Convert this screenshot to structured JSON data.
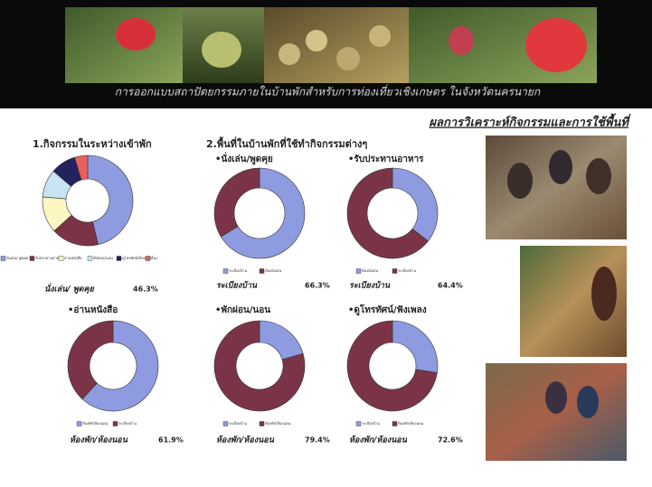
{
  "header": {
    "title": "การออกแบบสถาปัตยกรรมภายในบ้านพักสำหรับการท่องเที่ยวเชิงเกษตร ในจังหวัดนครนายก"
  },
  "heading": "ผลการวิเคราะห์กิจกรรมและการใช้พื้นที่",
  "section_title": "2.พื้นที่ในบ้านพักที่ใช้ทำกิจกรรมต่างๆ",
  "chart_data": [
    {
      "type": "donut",
      "title": "1.กิจกรรมในระหว่างเข้าพัก",
      "categories": [
        "นั่งเล่น/ พูดคุย",
        "รับประทานอาหาร",
        "อ่านหนังสือ",
        "พักผ่อน/นอน",
        "ดูโทรทัศน์/ฟังเพลง",
        "อื่นๆ"
      ],
      "values": [
        46.3,
        17,
        13,
        10,
        9,
        4.7
      ],
      "value_labels": [
        "46.3%",
        null,
        null,
        null,
        null,
        null
      ],
      "colors": [
        "#8e9be0",
        "#7b3447",
        "#fbf6c2",
        "#c7e4f4",
        "#23215e",
        "#e8605c"
      ]
    },
    {
      "type": "donut",
      "title": "•นั่งเล่น/พูดคุย",
      "categories": [
        "ระเบียงบ้าน",
        "ห้องนั่งเล่น"
      ],
      "values": [
        66.3,
        33.7
      ],
      "value_labels": [
        "66.3%",
        null
      ],
      "colors": [
        "#8e9be0",
        "#7b3447"
      ]
    },
    {
      "type": "donut",
      "title": "•รับประทานอาหาร",
      "categories": [
        "ห้องนั่งเล่น",
        "ระเบียงบ้าน"
      ],
      "values": [
        35.6,
        64.4
      ],
      "value_labels": [
        null,
        "64.4%"
      ],
      "colors": [
        "#8e9be0",
        "#7b3447"
      ]
    },
    {
      "type": "donut",
      "title": "•อ่านหนังสือ",
      "categories": [
        "ห้องพัก/ห้องนอน",
        "ระเบียงบ้าน"
      ],
      "values": [
        61.9,
        38.1
      ],
      "value_labels": [
        "61.9%",
        null
      ],
      "colors": [
        "#8e9be0",
        "#7b3447"
      ]
    },
    {
      "type": "donut",
      "title": "•พักผ่อน/นอน",
      "categories": [
        "ระเบียงบ้าน",
        "ห้องพัก/ห้องนอน"
      ],
      "values": [
        20.6,
        79.4
      ],
      "value_labels": [
        null,
        "79.4%"
      ],
      "colors": [
        "#8e9be0",
        "#7b3447"
      ]
    },
    {
      "type": "donut",
      "title": "•ดูโทรทัศน์/ฟังเพลง",
      "categories": [
        "ระเบียงบ้าน",
        "ห้องพัก/ห้องนอน"
      ],
      "values": [
        27.4,
        72.6
      ],
      "value_labels": [
        null,
        "72.6%"
      ],
      "colors": [
        "#8e9be0",
        "#7b3447"
      ]
    }
  ]
}
